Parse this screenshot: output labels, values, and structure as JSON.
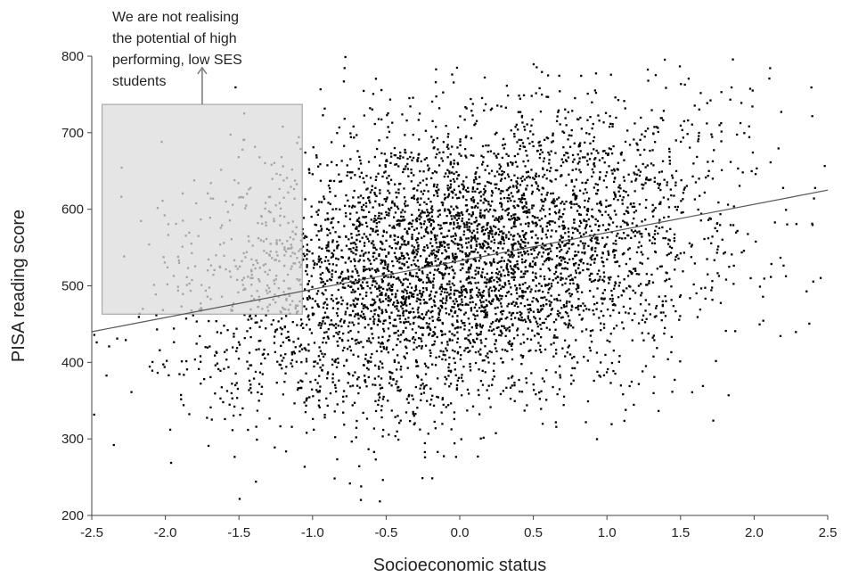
{
  "chart_data": {
    "type": "scatter",
    "title": "",
    "xlabel": "Socioeconomic status",
    "ylabel": "PISA reading score",
    "xlim": [
      -2.5,
      2.5
    ],
    "ylim": [
      200,
      800
    ],
    "xticks": [
      -2.5,
      -2.0,
      -1.5,
      -1.0,
      -0.5,
      0.0,
      0.5,
      1.0,
      1.5,
      2.0,
      2.5
    ],
    "xtick_labels": [
      "-2.5",
      "-2.0",
      "-1.5",
      "-1.0",
      "-0.5",
      "0.0",
      "0.5",
      "1.0",
      "1.5",
      "2.0",
      "2.5"
    ],
    "yticks": [
      200,
      300,
      400,
      500,
      600,
      700,
      800
    ],
    "ytick_labels": [
      "200",
      "300",
      "400",
      "500",
      "600",
      "700",
      "800"
    ],
    "grid": false,
    "point_color": "#000000",
    "trend_line": {
      "x": [
        -2.5,
        2.5
      ],
      "y": [
        440,
        625
      ],
      "color": "#555555"
    },
    "highlight_region": {
      "x": [
        -2.43,
        -1.07
      ],
      "y": [
        463,
        737
      ],
      "fill": "#dcdcdc",
      "stroke": "#9a9a9a"
    },
    "annotation": {
      "lines": [
        "We are not realising",
        "the potential of high",
        "performing, low SES",
        "students"
      ],
      "arrow_x": -1.75,
      "arrow_y_from": 737,
      "arrow_y_to": 785,
      "color": "#777777"
    },
    "scatter": {
      "n_points": 5000,
      "x_mean": 0.0,
      "x_sd": 0.85,
      "intercept": 532,
      "slope": 37,
      "residual_sd": 95
    }
  }
}
